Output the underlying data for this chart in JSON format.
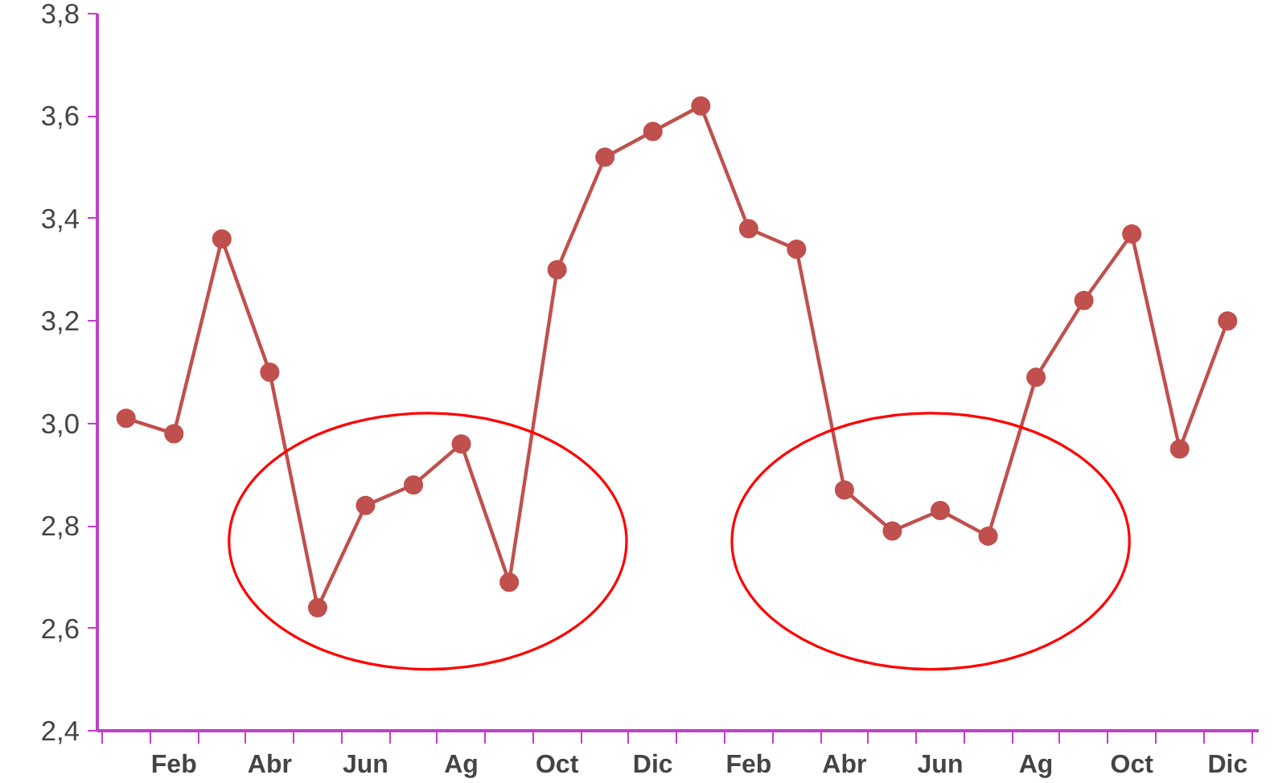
{
  "chart_data": {
    "type": "line",
    "categories": [
      null,
      "Feb",
      null,
      "Abr",
      null,
      "Jun",
      null,
      "Ag",
      null,
      "Oct",
      null,
      "Dic",
      null,
      "Feb",
      null,
      "Abr",
      null,
      "Jun",
      null,
      "Ag",
      null,
      "Oct",
      null,
      "Dic"
    ],
    "series": [
      {
        "color": "#c0504d",
        "values": [
          3.01,
          2.98,
          3.36,
          3.1,
          2.64,
          2.84,
          2.88,
          2.96,
          2.69,
          3.3,
          3.52,
          3.57,
          3.62,
          3.38,
          3.34,
          2.87,
          2.79,
          2.83,
          2.78,
          3.09,
          3.24,
          3.37,
          2.95,
          3.2
        ]
      }
    ],
    "ylim": [
      2.4,
      3.8
    ],
    "yticks": [
      {
        "value": 2.4,
        "label": "2,4"
      },
      {
        "value": 2.6,
        "label": "2,6"
      },
      {
        "value": 2.8,
        "label": "2,8"
      },
      {
        "value": 3.0,
        "label": "3,0"
      },
      {
        "value": 3.2,
        "label": "3,2"
      },
      {
        "value": 3.4,
        "label": "3,4"
      },
      {
        "value": 3.6,
        "label": "3,6"
      },
      {
        "value": 3.8,
        "label": "3,8"
      }
    ],
    "grid": false,
    "marker": "circle",
    "line_style": "solid"
  }
}
